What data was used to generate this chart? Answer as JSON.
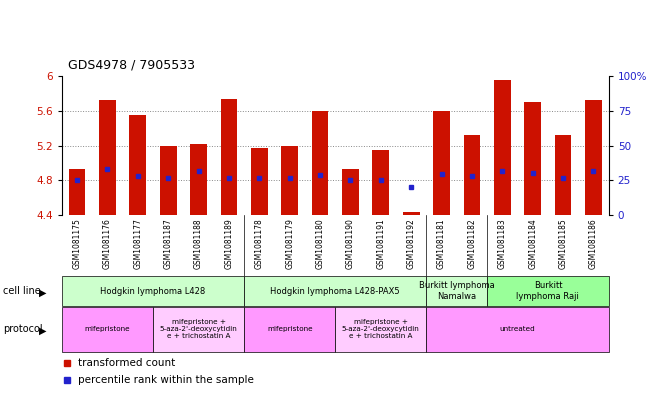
{
  "title": "GDS4978 / 7905533",
  "samples": [
    "GSM1081175",
    "GSM1081176",
    "GSM1081177",
    "GSM1081187",
    "GSM1081188",
    "GSM1081189",
    "GSM1081178",
    "GSM1081179",
    "GSM1081180",
    "GSM1081190",
    "GSM1081191",
    "GSM1081192",
    "GSM1081181",
    "GSM1081182",
    "GSM1081183",
    "GSM1081184",
    "GSM1081185",
    "GSM1081186"
  ],
  "bar_tops": [
    4.93,
    5.72,
    5.55,
    5.2,
    5.22,
    5.73,
    5.17,
    5.19,
    5.6,
    4.93,
    5.15,
    4.44,
    5.6,
    5.32,
    5.95,
    5.7,
    5.32,
    5.72
  ],
  "bar_base": 4.4,
  "percentile_values": [
    4.81,
    4.93,
    4.85,
    4.83,
    4.91,
    4.83,
    4.83,
    4.83,
    4.86,
    4.8,
    4.8,
    4.72,
    4.87,
    4.85,
    4.91,
    4.89,
    4.83,
    4.91
  ],
  "ylim_left": [
    4.4,
    6.0
  ],
  "ylim_right": [
    0,
    100
  ],
  "yticks_left": [
    4.4,
    4.8,
    5.2,
    5.6,
    6.0
  ],
  "yticks_right": [
    0,
    25,
    50,
    75,
    100
  ],
  "ytick_labels_left": [
    "4.4",
    "4.8",
    "5.2",
    "5.6",
    "6"
  ],
  "ytick_labels_right": [
    "0",
    "25",
    "50",
    "75",
    "100%"
  ],
  "hlines": [
    4.8,
    5.2,
    5.6
  ],
  "bar_color": "#cc1100",
  "percentile_color": "#2222cc",
  "cell_line_groups": [
    {
      "label": "Hodgkin lymphoma L428",
      "start": 0,
      "end": 5,
      "color": "#ccffcc"
    },
    {
      "label": "Hodgkin lymphoma L428-PAX5",
      "start": 6,
      "end": 11,
      "color": "#ccffcc"
    },
    {
      "label": "Burkitt lymphoma\nNamalwa",
      "start": 12,
      "end": 13,
      "color": "#ccffcc"
    },
    {
      "label": "Burkitt\nlymphoma Raji",
      "start": 14,
      "end": 17,
      "color": "#99ff99"
    }
  ],
  "protocol_groups": [
    {
      "label": "mifepristone",
      "start": 0,
      "end": 2,
      "color": "#ff99ff"
    },
    {
      "label": "mifepristone +\n5-aza-2'-deoxycytidin\ne + trichostatin A",
      "start": 3,
      "end": 5,
      "color": "#ffccff"
    },
    {
      "label": "mifepristone",
      "start": 6,
      "end": 8,
      "color": "#ff99ff"
    },
    {
      "label": "mifepristone +\n5-aza-2'-deoxycytidin\ne + trichostatin A",
      "start": 9,
      "end": 11,
      "color": "#ffccff"
    },
    {
      "label": "untreated",
      "start": 12,
      "end": 17,
      "color": "#ff99ff"
    }
  ],
  "cell_line_label": "cell line",
  "protocol_label": "protocol",
  "bg_color": "#ffffff",
  "grid_color": "#888888",
  "axis_color_left": "#cc1100",
  "axis_color_right": "#2222cc",
  "xtick_bg": "#dddddd",
  "bar_width": 0.55
}
